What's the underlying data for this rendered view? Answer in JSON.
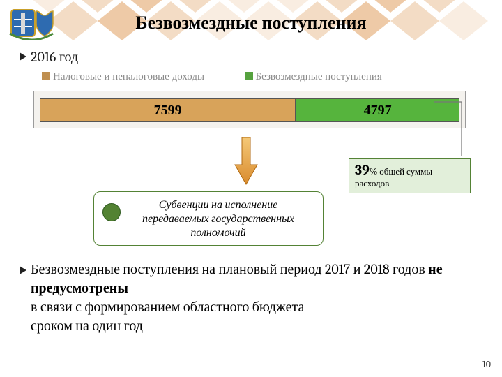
{
  "title": "Безвозмездные поступления",
  "year_line": "2016 год",
  "legend": {
    "item1": {
      "label": "Налоговые и неналоговые доходы",
      "color": "#bf8f50"
    },
    "item2": {
      "label": "Безвозмездные поступления",
      "color": "#56a23f"
    }
  },
  "bar": {
    "background_color": "#f4f2ee",
    "border_color": "#9b9b9b",
    "seg1": {
      "value": "7599",
      "color": "#d8a35a",
      "width_pct": 61
    },
    "seg2": {
      "value": "4797",
      "color": "#56b43d",
      "width_pct": 39
    }
  },
  "pct_box": {
    "big": "39",
    "unit": "% общей суммы расходов",
    "bg": "#e2efda",
    "border": "#548235"
  },
  "sub_box": {
    "text": "Субвенции на исполнение передаваемых государственных полномочий",
    "border": "#548235",
    "dot_color": "#538233"
  },
  "paragraph": {
    "pre": "Безвозмездные поступления на плановый период 2017 и 2018 годов ",
    "bold": "не предусмотрены",
    "post1": "в связи с формированием областного бюджета",
    "post2": "сроком на один год"
  },
  "page_number": "10",
  "deco": {
    "c1": "#f9ede1",
    "c2": "#f3dcc5",
    "c3": "#eecaa7"
  }
}
